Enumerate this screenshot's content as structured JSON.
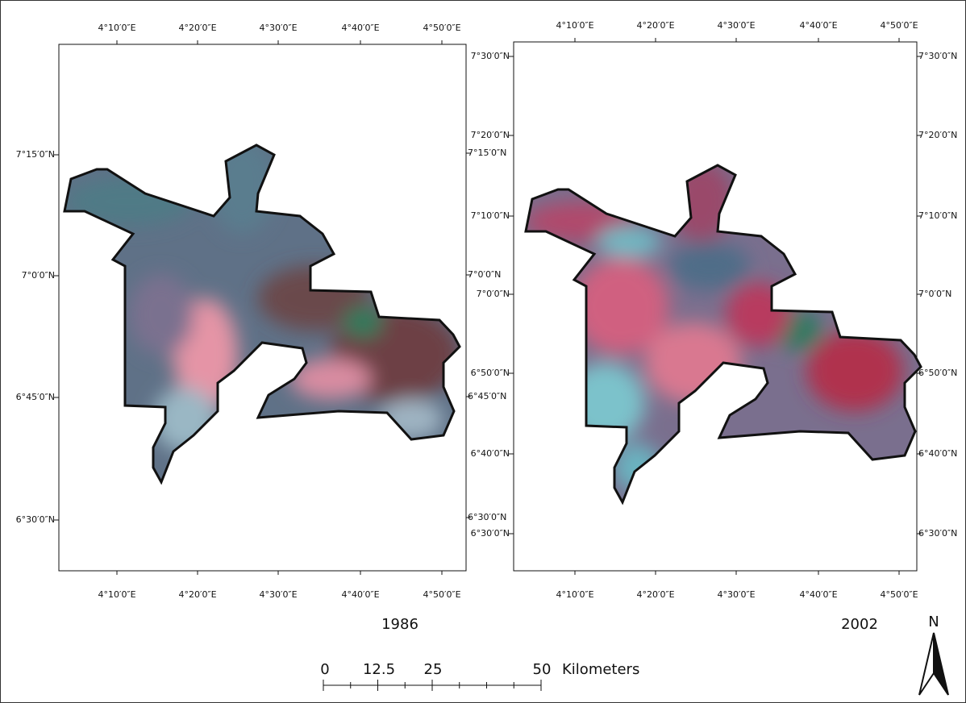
{
  "panels": [
    {
      "year": "1986",
      "top_labels": [
        "4°10′0″E",
        "4°20′0″E",
        "4°30′0″E",
        "4°40′0″E",
        "4°50′0″E"
      ],
      "bottom_labels": [
        "4°10′0″E",
        "4°20′0″E",
        "4°30′0″E",
        "4°40′0″E",
        "4°50′0″E"
      ],
      "left_labels": [
        "7°15′0″N",
        "7°0′0″N",
        "6°45′0″N",
        "6°30′0″N"
      ],
      "right_labels": [
        "7°15′0″N",
        "7°0′0″N",
        "6°45′0″N",
        "6°30′0″N"
      ]
    },
    {
      "year": "2002",
      "top_labels": [
        "4°10′0″E",
        "4°20′0″E",
        "4°30′0″E",
        "4°40′0″E",
        "4°50′0″E"
      ],
      "bottom_labels": [
        "4°10′0″E",
        "4°20′0″E",
        "4°30′0″E",
        "4°40′0″E",
        "4°50′0″E"
      ],
      "left_labels": [
        "7°30′0″N",
        "7°20′0″N",
        "7°10′0″N",
        "7°0′0″N",
        "6°50′0″N",
        "6°40′0″N",
        "6°30′0″N"
      ],
      "right_labels": [
        "7°30′0″N",
        "7°20′0″N",
        "7°10′0″N",
        "7°0′0″N",
        "6°50′0″N",
        "6°40′0″N",
        "6°30′0″N"
      ]
    }
  ],
  "scale_bar": {
    "labels": [
      "0",
      "12.5",
      "25",
      "50"
    ],
    "unit": "Kilometers"
  },
  "north_arrow": "N"
}
